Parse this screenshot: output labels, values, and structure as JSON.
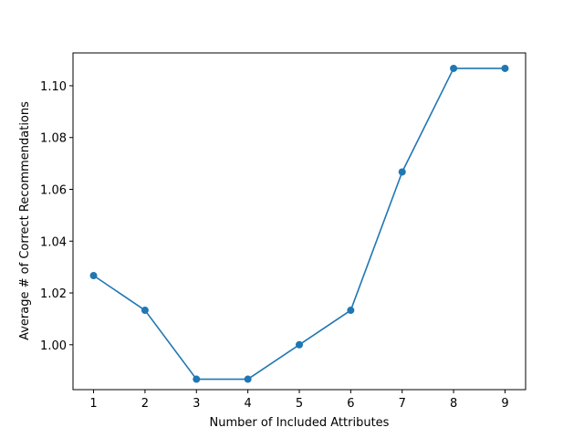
{
  "chart_data": {
    "type": "line",
    "title": "",
    "xlabel": "Number of Included Attributes",
    "ylabel": "Average # of Correct Recommendations",
    "x": [
      1,
      2,
      3,
      4,
      5,
      6,
      7,
      8,
      9
    ],
    "series": [
      {
        "values": [
          1.0267,
          1.0133,
          0.9867,
          0.9867,
          1.0,
          1.0133,
          1.0667,
          1.1067,
          1.1067
        ],
        "color": "#1f77b4",
        "marker": "circle"
      }
    ],
    "xticks": [
      "1",
      "2",
      "3",
      "4",
      "5",
      "6",
      "7",
      "8",
      "9"
    ],
    "yticks": [
      "1.00",
      "1.02",
      "1.04",
      "1.06",
      "1.08",
      "1.10"
    ],
    "xlim": [
      0.6,
      9.4
    ],
    "ylim": [
      0.98267,
      1.11267
    ],
    "grid": false,
    "legend": "none"
  }
}
